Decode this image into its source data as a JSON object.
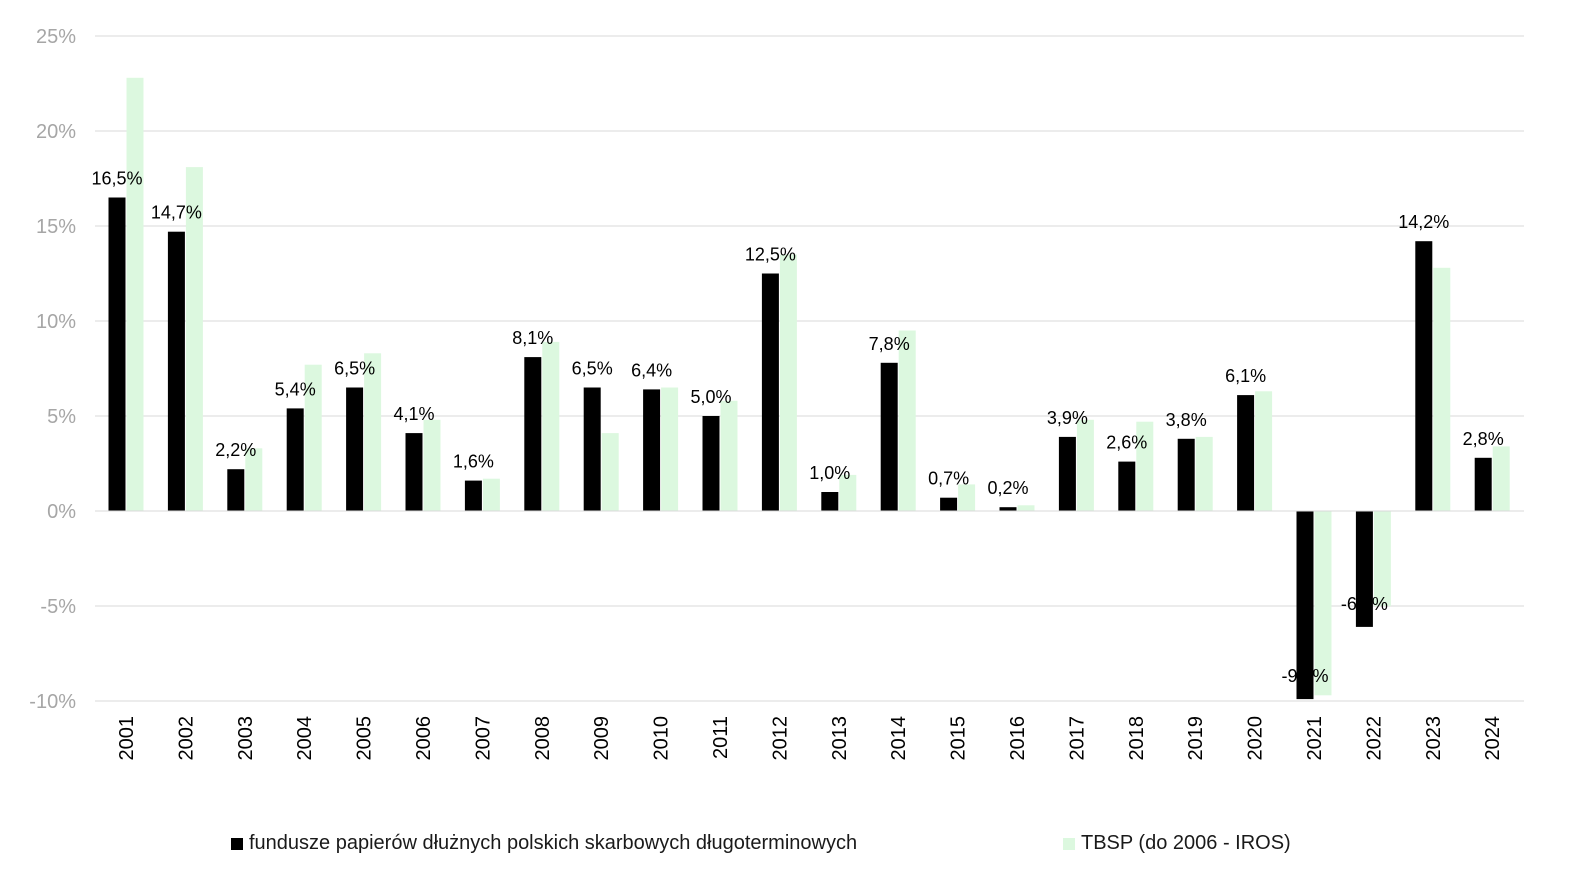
{
  "chart_data": {
    "type": "bar",
    "categories": [
      "2001",
      "2002",
      "2003",
      "2004",
      "2005",
      "2006",
      "2007",
      "2008",
      "2009",
      "2010",
      "2011",
      "2012",
      "2013",
      "2014",
      "2015",
      "2016",
      "2017",
      "2018",
      "2019",
      "2020",
      "2021",
      "2022",
      "2023",
      "2024"
    ],
    "series": [
      {
        "name": "fundusze papierów dłużnych polskich skarbowych długoterminowych",
        "color": "#000000",
        "values": [
          16.5,
          14.7,
          2.2,
          5.4,
          6.5,
          4.1,
          1.6,
          8.1,
          6.5,
          6.4,
          5.0,
          12.5,
          1.0,
          7.8,
          0.7,
          0.2,
          3.9,
          2.6,
          3.8,
          6.1,
          -9.9,
          -6.1,
          14.2,
          2.8
        ],
        "labels": [
          "16,5%",
          "14,7%",
          "2,2%",
          "5,4%",
          "6,5%",
          "4,1%",
          "1,6%",
          "8,1%",
          "6,5%",
          "6,4%",
          "5,0%",
          "12,5%",
          "1,0%",
          "7,8%",
          "0,7%",
          "0,2%",
          "3,9%",
          "2,6%",
          "3,8%",
          "6,1%",
          "-9,9%",
          "-6,1%",
          "14,2%",
          "2,8%"
        ]
      },
      {
        "name": "TBSP (do 2006 - IROS)",
        "color": "#dcf8df",
        "values": [
          22.8,
          18.1,
          3.3,
          7.7,
          8.3,
          4.8,
          1.7,
          8.9,
          4.1,
          6.5,
          5.8,
          13.5,
          1.9,
          9.5,
          1.4,
          0.3,
          4.8,
          4.7,
          3.9,
          6.3,
          -9.7,
          -5.0,
          12.8,
          3.4
        ]
      }
    ],
    "yticks": [
      "25%",
      "20%",
      "15%",
      "10%",
      "5%",
      "0%",
      "-5%",
      "-10%"
    ],
    "ytick_values": [
      25,
      20,
      15,
      10,
      5,
      0,
      -5,
      -10
    ],
    "ylim": [
      -10,
      25
    ],
    "grid": true,
    "legend_position": "bottom",
    "title": "",
    "xlabel": "",
    "ylabel": ""
  }
}
